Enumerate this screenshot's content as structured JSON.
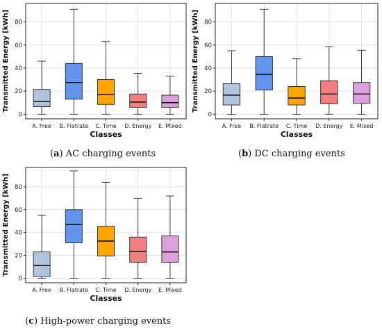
{
  "captions": {
    "a_letter": "a",
    "a_text": "AC charging events",
    "b_letter": "b",
    "b_text": "DC charging events",
    "c_letter": "c",
    "c_text": "High-power charging events"
  },
  "chart_data": [
    {
      "id": "ac",
      "type": "boxplot",
      "ylabel": "Transmitted Energy [kWh]",
      "xlabel": "Classes",
      "ylim": [
        -4,
        96
      ],
      "yticks": [
        0,
        20,
        40,
        60,
        80
      ],
      "grid": true,
      "categories": [
        "A. Free",
        "B. Flatrate",
        "C. Time",
        "D. Energy",
        "E. Mixed"
      ],
      "colors": [
        "#b0c4de",
        "#6495ed",
        "#ffa500",
        "#f08080",
        "#dda0dd"
      ],
      "boxes": [
        {
          "whisker_low": 0,
          "q1": 6.5,
          "median": 11,
          "q3": 21.5,
          "whisker_high": 46
        },
        {
          "whisker_low": 0,
          "q1": 13,
          "median": 27.5,
          "q3": 44,
          "whisker_high": 91
        },
        {
          "whisker_low": 0,
          "q1": 8.5,
          "median": 17,
          "q3": 30,
          "whisker_high": 63
        },
        {
          "whisker_low": 0,
          "q1": 6,
          "median": 10.5,
          "q3": 17.5,
          "whisker_high": 35.5
        },
        {
          "whisker_low": 0,
          "q1": 6,
          "median": 10,
          "q3": 16.5,
          "whisker_high": 33
        }
      ]
    },
    {
      "id": "dc",
      "type": "boxplot",
      "ylabel": "Transmitted Energy [kWh]",
      "xlabel": "Classes",
      "ylim": [
        -4,
        96
      ],
      "yticks": [
        0,
        20,
        40,
        60,
        80
      ],
      "grid": true,
      "categories": [
        "A. Free",
        "B. Flatrate",
        "C. Time",
        "D. Energy",
        "E. Mixed"
      ],
      "colors": [
        "#b0c4de",
        "#6495ed",
        "#ffa500",
        "#f08080",
        "#dda0dd"
      ],
      "boxes": [
        {
          "whisker_low": 0,
          "q1": 8,
          "median": 16.5,
          "q3": 26.5,
          "whisker_high": 55
        },
        {
          "whisker_low": 0,
          "q1": 21,
          "median": 34.5,
          "q3": 50,
          "whisker_high": 91
        },
        {
          "whisker_low": 0,
          "q1": 8,
          "median": 14,
          "q3": 24,
          "whisker_high": 48
        },
        {
          "whisker_low": 0,
          "q1": 9,
          "median": 17.5,
          "q3": 29,
          "whisker_high": 58.5
        },
        {
          "whisker_low": 0,
          "q1": 9.5,
          "median": 17.5,
          "q3": 27.5,
          "whisker_high": 55.5
        }
      ]
    },
    {
      "id": "hpc",
      "type": "boxplot",
      "ylabel": "Transmitted Energy [kWh]",
      "xlabel": "Classes",
      "ylim": [
        -4,
        97
      ],
      "yticks": [
        0,
        20,
        40,
        60,
        80
      ],
      "grid": true,
      "categories": [
        "A. Free",
        "B. Flatrate",
        "C. Time",
        "D. Energy",
        "E. Mixed"
      ],
      "colors": [
        "#b0c4de",
        "#6495ed",
        "#ffa500",
        "#f08080",
        "#dda0dd"
      ],
      "boxes": [
        {
          "whisker_low": 0,
          "q1": 1.5,
          "median": 11,
          "q3": 23,
          "whisker_high": 55
        },
        {
          "whisker_low": 0,
          "q1": 31,
          "median": 47,
          "q3": 60,
          "whisker_high": 94
        },
        {
          "whisker_low": 0,
          "q1": 19.5,
          "median": 32.5,
          "q3": 45.5,
          "whisker_high": 84
        },
        {
          "whisker_low": 0,
          "q1": 14,
          "median": 23.5,
          "q3": 36,
          "whisker_high": 70
        },
        {
          "whisker_low": 0,
          "q1": 14,
          "median": 23,
          "q3": 37,
          "whisker_high": 72
        }
      ]
    }
  ]
}
